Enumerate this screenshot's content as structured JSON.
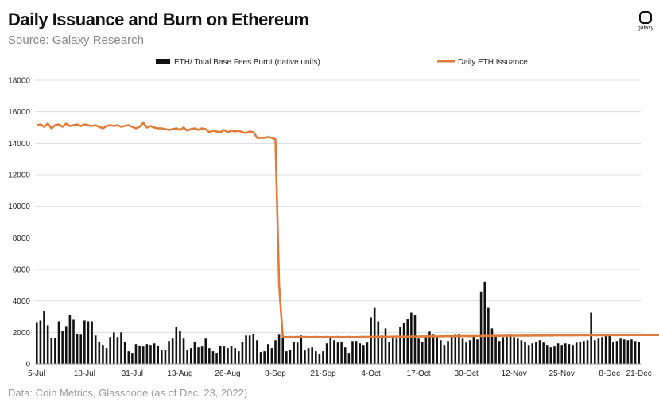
{
  "header": {
    "title": "Daily Issuance and Burn on Ethereum",
    "subtitle": "Source: Galaxy Research"
  },
  "footer": {
    "note": "Data: Coin Metrics, Glassnode (as of Dec. 23, 2022)"
  },
  "logo": {
    "text": "galaxy",
    "icon": "galaxy-logo-icon"
  },
  "colors": {
    "burn": "#111111",
    "issuance": "#e07b39",
    "grid": "#dcdcdc",
    "axis": "#999999"
  },
  "chart_data": {
    "type": "bar+line",
    "title": "Daily Issuance and Burn on Ethereum",
    "xlabel": "",
    "ylabel": "",
    "ylim": [
      0,
      18000
    ],
    "yticks": [
      "0",
      "2000",
      "4000",
      "6000",
      "8000",
      "10000",
      "12000",
      "14000",
      "16000",
      "18000"
    ],
    "xticks": [
      "5-Jul",
      "18-Jul",
      "31-Jul",
      "13-Aug",
      "26-Aug",
      "8-Sep",
      "21-Sep",
      "4-Oct",
      "17-Oct",
      "30-Oct",
      "12-Nov",
      "25-Nov",
      "8-Dec",
      "21-Dec"
    ],
    "x_start": "2022-07-05",
    "x_end": "2022-12-23",
    "grid": true,
    "legend_position": "top",
    "series": [
      {
        "name": "ETH/ Total Base Fees Burnt (native units)",
        "type": "bar",
        "values": [
          2650,
          2750,
          3350,
          2450,
          1650,
          1650,
          2700,
          2100,
          2400,
          3100,
          2800,
          1900,
          1850,
          2750,
          2700,
          2700,
          1800,
          1400,
          1200,
          1000,
          1700,
          2000,
          1700,
          2000,
          1400,
          800,
          700,
          1250,
          1150,
          1100,
          1250,
          1200,
          1300,
          1150,
          850,
          900,
          1450,
          1600,
          2350,
          2100,
          1600,
          900,
          1000,
          1400,
          1050,
          1100,
          1600,
          1000,
          800,
          700,
          1150,
          1100,
          1000,
          1150,
          1000,
          800,
          1400,
          1800,
          1800,
          1900,
          1500,
          750,
          800,
          1250,
          1000,
          1500,
          1850,
          1800,
          800,
          900,
          1400,
          1350,
          1800,
          850,
          1000,
          1050,
          800,
          650,
          800,
          1300,
          1700,
          1500,
          1350,
          1400,
          1050,
          700,
          1450,
          1450,
          1300,
          1200,
          1350,
          2950,
          3550,
          2700,
          1800,
          2250,
          1400,
          1700,
          1600,
          2350,
          2600,
          2850,
          3250,
          3100,
          1600,
          1400,
          1800,
          2050,
          1850,
          1700,
          1500,
          1200,
          1450,
          1700,
          1850,
          1900,
          1600,
          1350,
          1500,
          1750,
          1550,
          4600,
          5200,
          3550,
          2250,
          1750,
          1450,
          1700,
          1850,
          1900,
          1700,
          1600,
          1500,
          1400,
          1200,
          1300,
          1400,
          1500,
          1350,
          1200,
          1050,
          1100,
          1300,
          1200,
          1300,
          1250,
          1200,
          1350,
          1400,
          1450,
          1500,
          3250,
          1500,
          1600,
          1700,
          1800,
          1850,
          1400,
          1450,
          1600,
          1550,
          1500,
          1550,
          1450,
          1400
        ],
        "color": "#111111"
      },
      {
        "name": "Daily ETH Issuance",
        "type": "line",
        "values": [
          15150,
          15200,
          15050,
          15250,
          14950,
          15150,
          15200,
          15050,
          15250,
          15100,
          15150,
          15200,
          15100,
          15200,
          15150,
          15100,
          15150,
          15050,
          14950,
          15100,
          15150,
          15100,
          15150,
          15050,
          15100,
          15150,
          15050,
          14950,
          15050,
          15300,
          15000,
          15100,
          15000,
          14950,
          14950,
          14900,
          14850,
          14900,
          14950,
          14850,
          15000,
          14800,
          14900,
          14950,
          14850,
          14950,
          14900,
          14700,
          14800,
          14750,
          14700,
          14850,
          14700,
          14800,
          14750,
          14800,
          14700,
          14650,
          14750,
          14700,
          14350,
          14350,
          14350,
          14400,
          14350,
          14250,
          5000,
          1700,
          1700,
          1710,
          1700,
          1710,
          1700,
          1710,
          1700,
          1700,
          1710,
          1700,
          1700,
          1710,
          1700,
          1700,
          1710,
          1700,
          1700,
          1710,
          1700,
          1700,
          1710,
          1710,
          1720,
          1720,
          1720,
          1730,
          1720,
          1730,
          1720,
          1730,
          1730,
          1740,
          1730,
          1730,
          1740,
          1740,
          1740,
          1750,
          1740,
          1750,
          1750,
          1740,
          1750,
          1750,
          1760,
          1750,
          1760,
          1760,
          1760,
          1770,
          1760,
          1770,
          1770,
          1770,
          1780,
          1770,
          1780,
          1780,
          1780,
          1790,
          1780,
          1790,
          1790,
          1790,
          1790,
          1800,
          1790,
          1800,
          1800,
          1800,
          1800,
          1810,
          1800,
          1810,
          1810,
          1810,
          1810,
          1820,
          1810,
          1820,
          1820,
          1820,
          1820,
          1820,
          1820,
          1820,
          1820,
          1820,
          1820,
          1830,
          1820,
          1830,
          1830,
          1830,
          1830,
          1830,
          1830,
          1830,
          1830,
          1830,
          1830,
          1830,
          1830
        ],
        "color": "#e07b39"
      }
    ]
  }
}
